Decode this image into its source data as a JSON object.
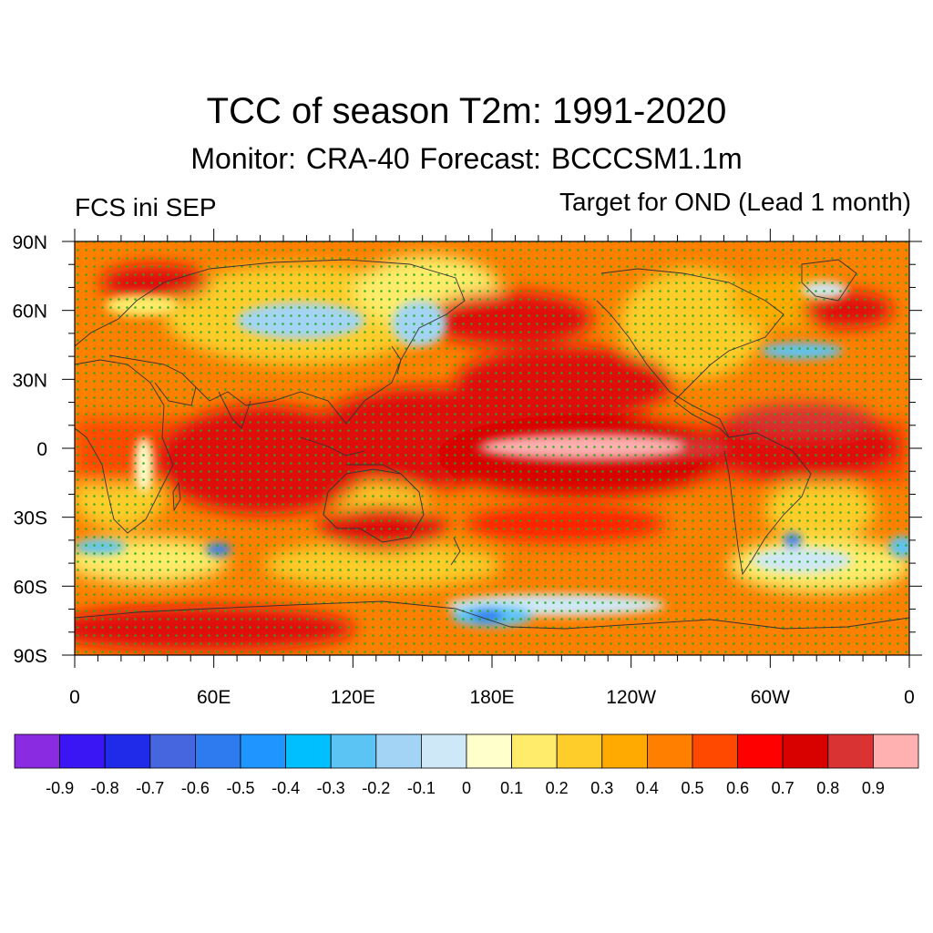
{
  "header": {
    "title": "TCC of season T2m: 1991-2020",
    "subtitle": "Monitor: CRA-40   Forecast: BCCCSM1.1m",
    "left_label": "FCS ini SEP",
    "right_label": "Target for OND (Lead 1 month)"
  },
  "map": {
    "projection": "cylindrical-equidistant",
    "lon_range": [
      0,
      360
    ],
    "lat_range": [
      -90,
      90
    ],
    "lat_labels": [
      "90N",
      "60N",
      "30N",
      "0",
      "30S",
      "60S",
      "90S"
    ],
    "lon_labels": [
      "0",
      "60E",
      "120E",
      "180E",
      "120W",
      "60W",
      "0"
    ],
    "stipple_color": "#22aa22",
    "coast_color": "#333333"
  },
  "colorbar": {
    "colors": [
      "#8a2be2",
      "#3b16f5",
      "#1f2be8",
      "#4666e0",
      "#2d7bef",
      "#1e95ff",
      "#00bfff",
      "#5cc4f5",
      "#a3d4f5",
      "#cfe8f8",
      "#ffffcc",
      "#ffec6a",
      "#ffcd2a",
      "#ffaa00",
      "#ff7f00",
      "#ff4800",
      "#ff0000",
      "#d90000",
      "#d93333",
      "#ffb0b0"
    ],
    "labels": [
      "-0.9",
      "-0.8",
      "-0.7",
      "-0.6",
      "-0.5",
      "-0.4",
      "-0.3",
      "-0.2",
      "-0.1",
      "0",
      "0.1",
      "0.2",
      "0.3",
      "0.4",
      "0.5",
      "0.6",
      "0.7",
      "0.8",
      "0.9"
    ]
  }
}
